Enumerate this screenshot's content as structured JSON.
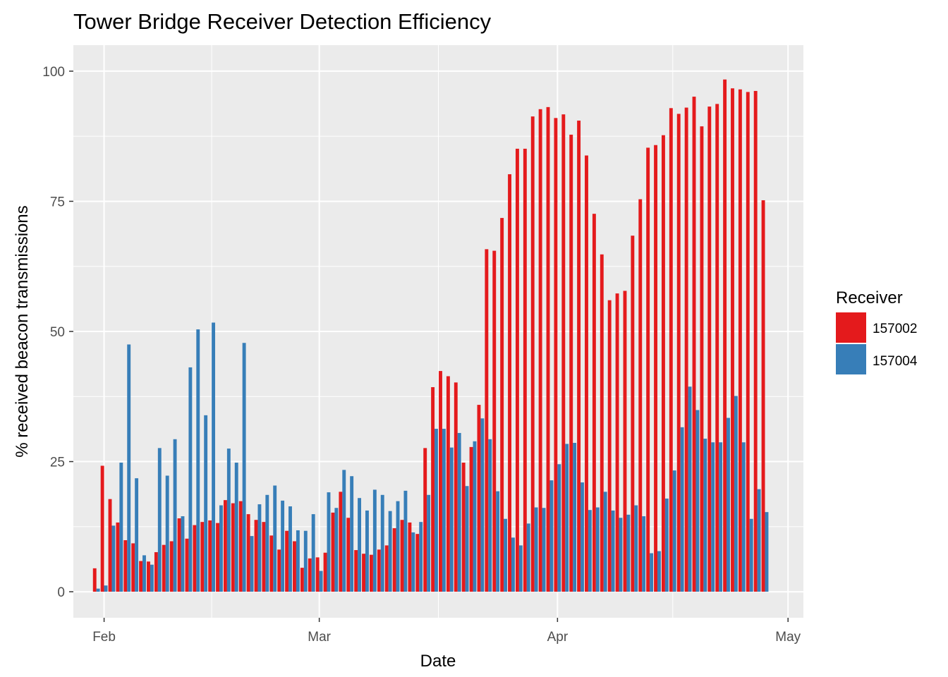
{
  "chart_data": {
    "type": "bar",
    "title": "Tower Bridge Receiver Detection Efficiency",
    "xlabel": "Date",
    "ylabel": "% received beacon transmissions",
    "x_type": "date",
    "x_ticks": [
      {
        "label": "Feb",
        "date": "2017-02-01"
      },
      {
        "label": "Mar",
        "date": "2017-03-01"
      },
      {
        "label": "Apr",
        "date": "2017-04-01"
      },
      {
        "label": "May",
        "date": "2017-05-01"
      }
    ],
    "xlim": [
      "2017-01-28",
      "2017-05-03"
    ],
    "ylim": [
      -5,
      105
    ],
    "y_ticks": [
      0,
      25,
      50,
      75,
      100
    ],
    "grid": true,
    "legend": {
      "title": "Receiver",
      "position": "right"
    },
    "series": [
      {
        "name": "157002",
        "color": "#E41A1C",
        "points": [
          [
            "2017-01-31",
            4.5
          ],
          [
            "2017-02-01",
            24.2
          ],
          [
            "2017-02-02",
            17.8
          ],
          [
            "2017-02-03",
            13.3
          ],
          [
            "2017-02-04",
            9.9
          ],
          [
            "2017-02-05",
            9.3
          ],
          [
            "2017-02-06",
            5.9
          ],
          [
            "2017-02-07",
            5.8
          ],
          [
            "2017-02-08",
            7.6
          ],
          [
            "2017-02-09",
            9.0
          ],
          [
            "2017-02-10",
            9.7
          ],
          [
            "2017-02-11",
            14.1
          ],
          [
            "2017-02-12",
            10.2
          ],
          [
            "2017-02-13",
            12.8
          ],
          [
            "2017-02-14",
            13.4
          ],
          [
            "2017-02-15",
            13.7
          ],
          [
            "2017-02-16",
            13.2
          ],
          [
            "2017-02-17",
            17.6
          ],
          [
            "2017-02-18",
            17.0
          ],
          [
            "2017-02-19",
            17.4
          ],
          [
            "2017-02-20",
            14.9
          ],
          [
            "2017-02-21",
            13.8
          ],
          [
            "2017-02-22",
            13.4
          ],
          [
            "2017-02-23",
            10.8
          ],
          [
            "2017-02-24",
            8.1
          ],
          [
            "2017-02-25",
            11.7
          ],
          [
            "2017-02-26",
            9.7
          ],
          [
            "2017-02-27",
            4.6
          ],
          [
            "2017-02-28",
            6.4
          ],
          [
            "2017-03-01",
            6.6
          ],
          [
            "2017-03-02",
            7.5
          ],
          [
            "2017-03-03",
            15.2
          ],
          [
            "2017-03-04",
            19.2
          ],
          [
            "2017-03-05",
            14.2
          ],
          [
            "2017-03-06",
            8.0
          ],
          [
            "2017-03-07",
            7.3
          ],
          [
            "2017-03-08",
            7.1
          ],
          [
            "2017-03-09",
            8.1
          ],
          [
            "2017-03-10",
            8.9
          ],
          [
            "2017-03-11",
            12.2
          ],
          [
            "2017-03-12",
            13.8
          ],
          [
            "2017-03-13",
            13.3
          ],
          [
            "2017-03-14",
            11.1
          ],
          [
            "2017-03-15",
            27.6
          ],
          [
            "2017-03-16",
            39.3
          ],
          [
            "2017-03-17",
            42.4
          ],
          [
            "2017-03-18",
            41.4
          ],
          [
            "2017-03-19",
            40.2
          ],
          [
            "2017-03-20",
            24.8
          ],
          [
            "2017-03-21",
            27.8
          ],
          [
            "2017-03-22",
            35.9
          ],
          [
            "2017-03-23",
            65.8
          ],
          [
            "2017-03-24",
            65.5
          ],
          [
            "2017-03-25",
            71.8
          ],
          [
            "2017-03-26",
            80.2
          ],
          [
            "2017-03-27",
            85.1
          ],
          [
            "2017-03-28",
            85.1
          ],
          [
            "2017-03-29",
            91.3
          ],
          [
            "2017-03-30",
            92.7
          ],
          [
            "2017-03-31",
            93.1
          ],
          [
            "2017-04-01",
            91.0
          ],
          [
            "2017-04-02",
            91.7
          ],
          [
            "2017-04-03",
            87.8
          ],
          [
            "2017-04-04",
            90.5
          ],
          [
            "2017-04-05",
            83.8
          ],
          [
            "2017-04-06",
            72.6
          ],
          [
            "2017-04-07",
            64.8
          ],
          [
            "2017-04-08",
            56.0
          ],
          [
            "2017-04-09",
            57.3
          ],
          [
            "2017-04-10",
            57.8
          ],
          [
            "2017-04-11",
            68.4
          ],
          [
            "2017-04-12",
            75.4
          ],
          [
            "2017-04-13",
            85.3
          ],
          [
            "2017-04-14",
            85.8
          ],
          [
            "2017-04-15",
            87.7
          ],
          [
            "2017-04-16",
            92.9
          ],
          [
            "2017-04-17",
            91.8
          ],
          [
            "2017-04-18",
            93.0
          ],
          [
            "2017-04-19",
            95.1
          ],
          [
            "2017-04-20",
            89.4
          ],
          [
            "2017-04-21",
            93.2
          ],
          [
            "2017-04-22",
            93.7
          ],
          [
            "2017-04-23",
            98.4
          ],
          [
            "2017-04-24",
            96.7
          ],
          [
            "2017-04-25",
            96.5
          ],
          [
            "2017-04-26",
            96.0
          ],
          [
            "2017-04-27",
            96.2
          ],
          [
            "2017-04-28",
            75.2
          ]
        ]
      },
      {
        "name": "157004",
        "color": "#377EB8",
        "points": [
          [
            "2017-01-31",
            0.6
          ],
          [
            "2017-02-01",
            1.2
          ],
          [
            "2017-02-02",
            12.7
          ],
          [
            "2017-02-03",
            24.8
          ],
          [
            "2017-02-04",
            47.5
          ],
          [
            "2017-02-05",
            21.8
          ],
          [
            "2017-02-06",
            7.0
          ],
          [
            "2017-02-07",
            5.2
          ],
          [
            "2017-02-08",
            27.6
          ],
          [
            "2017-02-09",
            22.3
          ],
          [
            "2017-02-10",
            29.3
          ],
          [
            "2017-02-11",
            14.5
          ],
          [
            "2017-02-12",
            43.1
          ],
          [
            "2017-02-13",
            50.4
          ],
          [
            "2017-02-14",
            33.9
          ],
          [
            "2017-02-15",
            51.7
          ],
          [
            "2017-02-16",
            16.6
          ],
          [
            "2017-02-17",
            27.5
          ],
          [
            "2017-02-18",
            24.8
          ],
          [
            "2017-02-19",
            47.8
          ],
          [
            "2017-02-20",
            10.7
          ],
          [
            "2017-02-21",
            16.8
          ],
          [
            "2017-02-22",
            18.6
          ],
          [
            "2017-02-23",
            20.4
          ],
          [
            "2017-02-24",
            17.5
          ],
          [
            "2017-02-25",
            16.4
          ],
          [
            "2017-02-26",
            11.8
          ],
          [
            "2017-02-27",
            11.7
          ],
          [
            "2017-02-28",
            14.9
          ],
          [
            "2017-03-01",
            4.0
          ],
          [
            "2017-03-02",
            19.1
          ],
          [
            "2017-03-03",
            16.1
          ],
          [
            "2017-03-04",
            23.4
          ],
          [
            "2017-03-05",
            22.2
          ],
          [
            "2017-03-06",
            18.0
          ],
          [
            "2017-03-07",
            15.6
          ],
          [
            "2017-03-08",
            19.6
          ],
          [
            "2017-03-09",
            18.6
          ],
          [
            "2017-03-10",
            15.5
          ],
          [
            "2017-03-11",
            17.4
          ],
          [
            "2017-03-12",
            19.4
          ],
          [
            "2017-03-13",
            11.4
          ],
          [
            "2017-03-14",
            13.4
          ],
          [
            "2017-03-15",
            18.6
          ],
          [
            "2017-03-16",
            31.3
          ],
          [
            "2017-03-17",
            31.3
          ],
          [
            "2017-03-18",
            27.7
          ],
          [
            "2017-03-19",
            30.5
          ],
          [
            "2017-03-20",
            20.3
          ],
          [
            "2017-03-21",
            28.9
          ],
          [
            "2017-03-22",
            33.3
          ],
          [
            "2017-03-23",
            29.3
          ],
          [
            "2017-03-24",
            19.3
          ],
          [
            "2017-03-25",
            14.0
          ],
          [
            "2017-03-26",
            10.4
          ],
          [
            "2017-03-27",
            8.9
          ],
          [
            "2017-03-28",
            13.1
          ],
          [
            "2017-03-29",
            16.2
          ],
          [
            "2017-03-30",
            16.1
          ],
          [
            "2017-03-31",
            21.4
          ],
          [
            "2017-04-01",
            24.5
          ],
          [
            "2017-04-02",
            28.4
          ],
          [
            "2017-04-03",
            28.6
          ],
          [
            "2017-04-04",
            21.0
          ],
          [
            "2017-04-05",
            15.7
          ],
          [
            "2017-04-06",
            16.2
          ],
          [
            "2017-04-07",
            19.2
          ],
          [
            "2017-04-08",
            15.6
          ],
          [
            "2017-04-09",
            14.2
          ],
          [
            "2017-04-10",
            14.8
          ],
          [
            "2017-04-11",
            16.6
          ],
          [
            "2017-04-12",
            14.5
          ],
          [
            "2017-04-13",
            7.4
          ],
          [
            "2017-04-14",
            7.8
          ],
          [
            "2017-04-15",
            17.9
          ],
          [
            "2017-04-16",
            23.3
          ],
          [
            "2017-04-17",
            31.6
          ],
          [
            "2017-04-18",
            39.4
          ],
          [
            "2017-04-19",
            34.9
          ],
          [
            "2017-04-20",
            29.4
          ],
          [
            "2017-04-21",
            28.7
          ],
          [
            "2017-04-22",
            28.7
          ],
          [
            "2017-04-23",
            33.4
          ],
          [
            "2017-04-24",
            37.6
          ],
          [
            "2017-04-25",
            28.7
          ],
          [
            "2017-04-26",
            14.0
          ],
          [
            "2017-04-27",
            19.7
          ],
          [
            "2017-04-28",
            15.3
          ]
        ]
      }
    ]
  }
}
